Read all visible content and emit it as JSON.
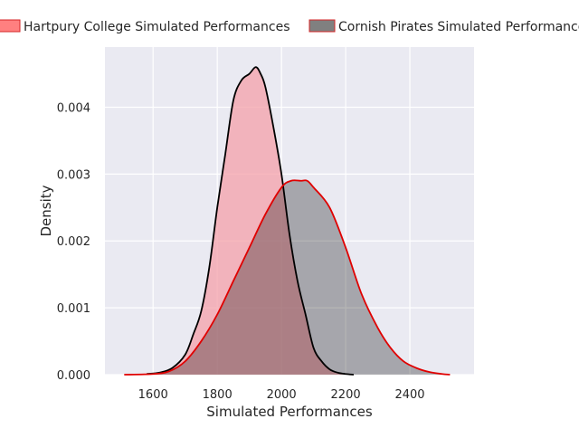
{
  "chart_data": {
    "type": "area",
    "title": "",
    "xlabel": "Simulated Performances",
    "ylabel": "Density",
    "xlim": [
      1450,
      2600
    ],
    "ylim": [
      0,
      0.0049
    ],
    "x_ticks": [
      1600,
      1800,
      2000,
      2200,
      2400
    ],
    "y_ticks": [
      0.0,
      0.001,
      0.002,
      0.003,
      0.004
    ],
    "x_tick_labels": [
      "1600",
      "1800",
      "2000",
      "2200",
      "2400"
    ],
    "y_tick_labels": [
      "0.000",
      "0.001",
      "0.002",
      "0.003",
      "0.004"
    ],
    "grid": true,
    "legend_position": "top",
    "series": [
      {
        "name": "Hartpury College Simulated Performances",
        "fill_color": "#f4a0aa",
        "legend_color": "#ff8080",
        "line_color": "#000000",
        "x": [
          1580,
          1620,
          1660,
          1700,
          1725,
          1750,
          1775,
          1800,
          1825,
          1850,
          1875,
          1900,
          1920,
          1935,
          1950,
          1975,
          2000,
          2025,
          2050,
          2075,
          2100,
          2125,
          2150,
          2175,
          2200,
          2225
        ],
        "y": [
          1e-05,
          3e-05,
          0.0001,
          0.0003,
          0.0006,
          0.00095,
          0.0016,
          0.0025,
          0.0033,
          0.0041,
          0.0044,
          0.0045,
          0.0046,
          0.0045,
          0.0043,
          0.0037,
          0.003,
          0.0021,
          0.0014,
          0.0009,
          0.0004,
          0.0002,
          8e-05,
          3e-05,
          1e-05,
          0.0
        ]
      },
      {
        "name": "Cornish Pirates Simulated Performances",
        "fill_color": "#a3a3a3",
        "legend_color": "#808080",
        "line_color": "#e00000",
        "x": [
          1510,
          1600,
          1650,
          1700,
          1750,
          1800,
          1850,
          1900,
          1950,
          2000,
          2030,
          2060,
          2080,
          2100,
          2150,
          2200,
          2250,
          2300,
          2340,
          2380,
          2420,
          2460,
          2500,
          2525
        ],
        "y": [
          0.0,
          1e-05,
          5e-05,
          0.0002,
          0.0005,
          0.0009,
          0.0014,
          0.0019,
          0.0024,
          0.0028,
          0.0029,
          0.0029,
          0.0029,
          0.0028,
          0.0025,
          0.0019,
          0.0012,
          0.0007,
          0.0004,
          0.0002,
          0.0001,
          4e-05,
          1e-05,
          0.0
        ]
      }
    ]
  }
}
